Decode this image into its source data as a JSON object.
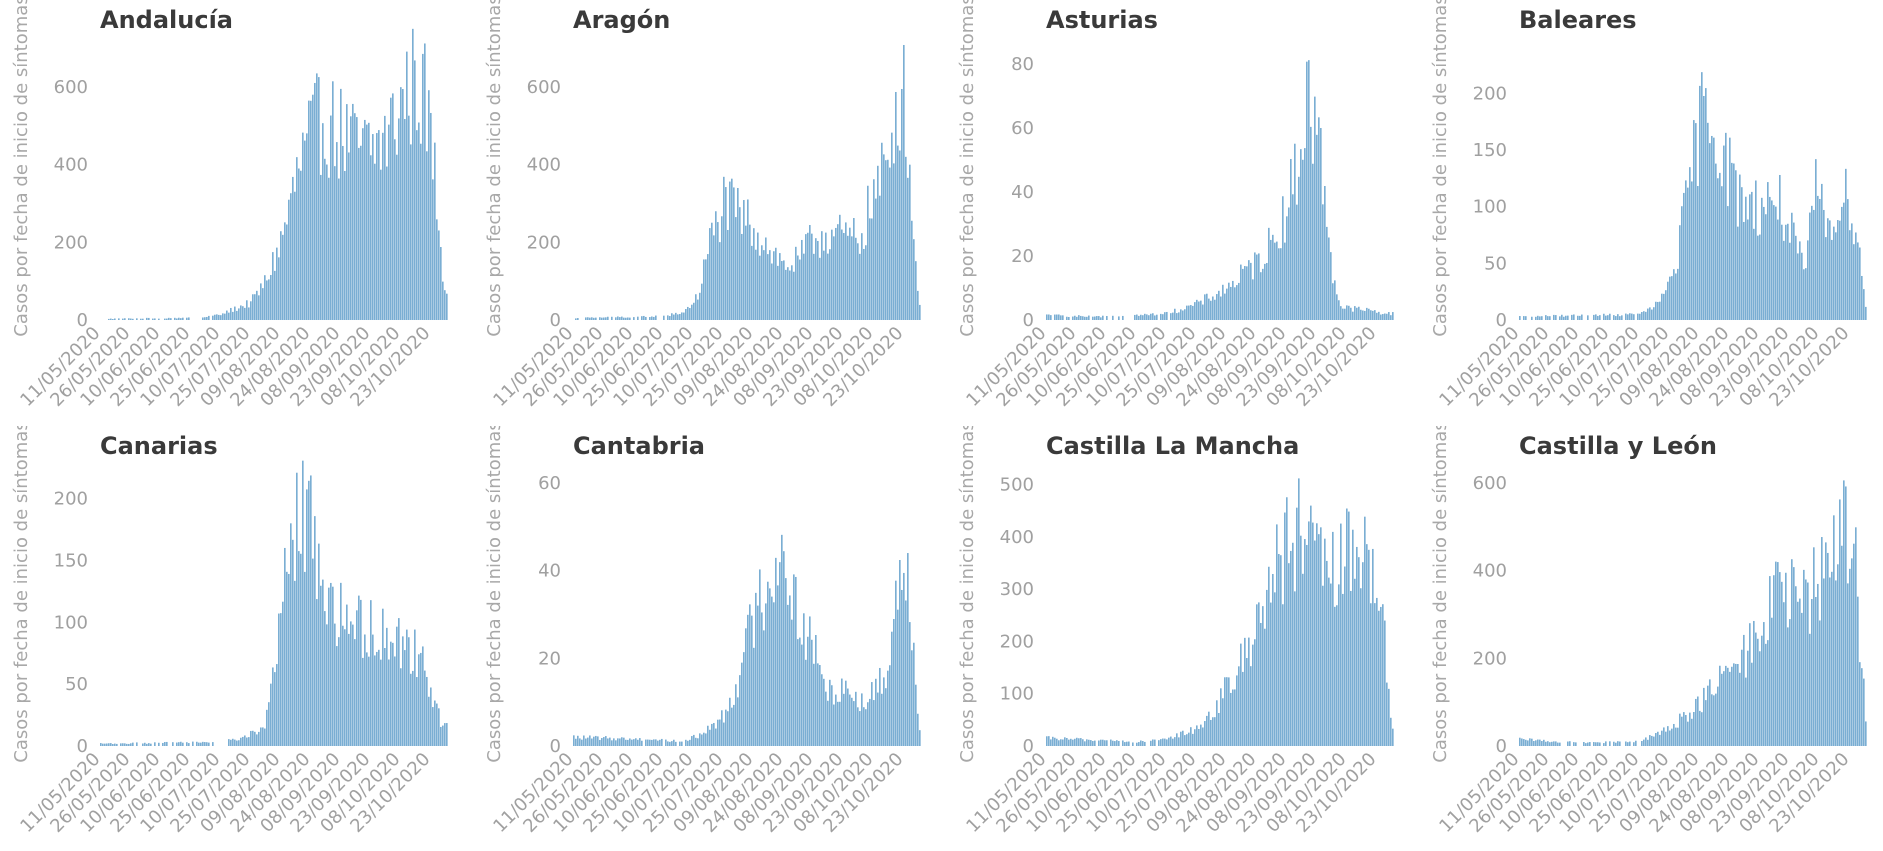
{
  "chart_data": [
    {
      "type": "bar",
      "title": "Andalucía",
      "ylabel": "Casos por fecha de inicio de síntomas",
      "ylim": [
        0,
        700
      ],
      "yticks": [
        0,
        200,
        400,
        600
      ],
      "x_start": "11/05/2020",
      "x_end": "31/10/2020",
      "xticks": [
        "11/05/2020",
        "26/05/2020",
        "10/06/2020",
        "25/06/2020",
        "10/07/2020",
        "25/07/2020",
        "09/08/2020",
        "24/08/2020",
        "08/09/2020",
        "23/09/2020",
        "08/10/2020",
        "23/10/2020"
      ],
      "profile": [
        [
          "11/05/2020",
          3
        ],
        [
          "30/06/2020",
          6
        ],
        [
          "10/07/2020",
          15
        ],
        [
          "25/07/2020",
          45
        ],
        [
          "01/08/2020",
          95
        ],
        [
          "09/08/2020",
          200
        ],
        [
          "18/08/2020",
          390
        ],
        [
          "24/08/2020",
          480
        ],
        [
          "30/08/2020",
          520
        ],
        [
          "08/09/2020",
          480
        ],
        [
          "15/09/2020",
          450
        ],
        [
          "23/09/2020",
          440
        ],
        [
          "01/10/2020",
          470
        ],
        [
          "10/10/2020",
          580
        ],
        [
          "16/10/2020",
          620
        ],
        [
          "20/10/2020",
          570
        ],
        [
          "24/10/2020",
          440
        ],
        [
          "27/10/2020",
          250
        ],
        [
          "30/10/2020",
          80
        ]
      ]
    },
    {
      "type": "bar",
      "title": "Aragón",
      "ylabel": "Casos por fecha de inicio de síntomas",
      "ylim": [
        0,
        700
      ],
      "yticks": [
        0,
        200,
        400,
        600
      ],
      "x_start": "11/05/2020",
      "x_end": "31/10/2020",
      "xticks": [
        "11/05/2020",
        "26/05/2020",
        "10/06/2020",
        "25/06/2020",
        "10/07/2020",
        "25/07/2020",
        "09/08/2020",
        "24/08/2020",
        "08/09/2020",
        "23/09/2020",
        "08/10/2020",
        "23/10/2020"
      ],
      "profile": [
        [
          "11/05/2020",
          5
        ],
        [
          "25/06/2020",
          10
        ],
        [
          "05/07/2020",
          20
        ],
        [
          "12/07/2020",
          60
        ],
        [
          "18/07/2020",
          200
        ],
        [
          "25/07/2020",
          300
        ],
        [
          "31/07/2020",
          280
        ],
        [
          "09/08/2020",
          240
        ],
        [
          "18/08/2020",
          180
        ],
        [
          "24/08/2020",
          140
        ],
        [
          "31/08/2020",
          150
        ],
        [
          "08/09/2020",
          210
        ],
        [
          "15/09/2020",
          225
        ],
        [
          "23/09/2020",
          215
        ],
        [
          "01/10/2020",
          210
        ],
        [
          "08/10/2020",
          320
        ],
        [
          "15/10/2020",
          400
        ],
        [
          "20/10/2020",
          600
        ],
        [
          "24/10/2020",
          560
        ],
        [
          "28/10/2020",
          200
        ],
        [
          "31/10/2020",
          40
        ]
      ]
    },
    {
      "type": "bar",
      "title": "Asturias",
      "ylabel": "Casos por fecha de inicio de síntomas",
      "ylim": [
        0,
        85
      ],
      "yticks": [
        0,
        20,
        40,
        60,
        80
      ],
      "x_start": "11/05/2020",
      "x_end": "31/10/2020",
      "xticks": [
        "11/05/2020",
        "26/05/2020",
        "10/06/2020",
        "25/06/2020",
        "10/07/2020",
        "25/07/2020",
        "09/08/2020",
        "24/08/2020",
        "08/09/2020",
        "23/09/2020",
        "08/10/2020",
        "23/10/2020"
      ],
      "profile": [
        [
          "11/05/2020",
          1.5
        ],
        [
          "06/06/2020",
          1
        ],
        [
          "10/07/2020",
          2
        ],
        [
          "25/07/2020",
          5
        ],
        [
          "09/08/2020",
          10
        ],
        [
          "24/08/2020",
          18
        ],
        [
          "01/09/2020",
          25
        ],
        [
          "08/09/2020",
          35
        ],
        [
          "14/09/2020",
          50
        ],
        [
          "18/09/2020",
          70
        ],
        [
          "23/09/2020",
          60
        ],
        [
          "27/09/2020",
          40
        ],
        [
          "01/10/2020",
          15
        ],
        [
          "05/10/2020",
          4
        ],
        [
          "20/10/2020",
          3
        ],
        [
          "27/10/2020",
          2
        ]
      ]
    },
    {
      "type": "bar",
      "title": "Baleares",
      "ylabel": "Casos por fecha de inicio de síntomas",
      "ylim": [
        0,
        240
      ],
      "yticks": [
        0,
        50,
        100,
        150,
        200
      ],
      "x_start": "11/05/2020",
      "x_end": "31/10/2020",
      "xticks": [
        "11/05/2020",
        "26/05/2020",
        "10/06/2020",
        "25/06/2020",
        "10/07/2020",
        "25/07/2020",
        "09/08/2020",
        "24/08/2020",
        "08/09/2020",
        "23/09/2020",
        "08/10/2020",
        "23/10/2020"
      ],
      "profile": [
        [
          "11/05/2020",
          3
        ],
        [
          "10/07/2020",
          5
        ],
        [
          "20/07/2020",
          15
        ],
        [
          "28/07/2020",
          50
        ],
        [
          "03/08/2020",
          110
        ],
        [
          "09/08/2020",
          175
        ],
        [
          "14/08/2020",
          190
        ],
        [
          "20/08/2020",
          150
        ],
        [
          "28/08/2020",
          110
        ],
        [
          "08/09/2020",
          100
        ],
        [
          "16/09/2020",
          110
        ],
        [
          "23/09/2020",
          80
        ],
        [
          "01/10/2020",
          40
        ],
        [
          "06/10/2020",
          130
        ],
        [
          "10/10/2020",
          85
        ],
        [
          "17/10/2020",
          100
        ],
        [
          "23/10/2020",
          110
        ],
        [
          "28/10/2020",
          60
        ],
        [
          "31/10/2020",
          10
        ]
      ]
    },
    {
      "type": "bar",
      "title": "Canarias",
      "ylabel": "Casos por fecha de inicio de síntomas",
      "ylim": [
        0,
        220
      ],
      "yticks": [
        0,
        50,
        100,
        150,
        200
      ],
      "x_start": "11/05/2020",
      "x_end": "31/10/2020",
      "xticks": [
        "11/05/2020",
        "26/05/2020",
        "10/06/2020",
        "25/06/2020",
        "10/07/2020",
        "25/07/2020",
        "09/08/2020",
        "24/08/2020",
        "08/09/2020",
        "23/09/2020",
        "08/10/2020",
        "23/10/2020"
      ],
      "profile": [
        [
          "11/05/2020",
          2
        ],
        [
          "05/07/2020",
          3
        ],
        [
          "20/07/2020",
          6
        ],
        [
          "01/08/2020",
          15
        ],
        [
          "05/08/2020",
          60
        ],
        [
          "10/08/2020",
          120
        ],
        [
          "15/08/2020",
          170
        ],
        [
          "20/08/2020",
          190
        ],
        [
          "26/08/2020",
          170
        ],
        [
          "01/09/2020",
          120
        ],
        [
          "08/09/2020",
          105
        ],
        [
          "23/09/2020",
          95
        ],
        [
          "08/10/2020",
          85
        ],
        [
          "16/10/2020",
          75
        ],
        [
          "22/10/2020",
          55
        ],
        [
          "29/10/2020",
          15
        ]
      ]
    },
    {
      "type": "bar",
      "title": "Cantabria",
      "ylabel": "Casos por fecha de inicio de síntomas",
      "ylim": [
        0,
        62
      ],
      "yticks": [
        0,
        20,
        40,
        60
      ],
      "x_start": "11/05/2020",
      "x_end": "31/10/2020",
      "xticks": [
        "11/05/2020",
        "26/05/2020",
        "10/06/2020",
        "25/06/2020",
        "10/07/2020",
        "25/07/2020",
        "09/08/2020",
        "24/08/2020",
        "08/09/2020",
        "23/09/2020",
        "08/10/2020",
        "23/10/2020"
      ],
      "profile": [
        [
          "11/05/2020",
          2
        ],
        [
          "20/06/2020",
          1.5
        ],
        [
          "05/07/2020",
          1
        ],
        [
          "15/07/2020",
          3
        ],
        [
          "25/07/2020",
          7
        ],
        [
          "01/08/2020",
          15
        ],
        [
          "09/08/2020",
          30
        ],
        [
          "18/08/2020",
          40
        ],
        [
          "24/08/2020",
          45
        ],
        [
          "31/08/2020",
          30
        ],
        [
          "08/09/2020",
          22
        ],
        [
          "15/09/2020",
          12
        ],
        [
          "23/09/2020",
          14
        ],
        [
          "01/10/2020",
          10
        ],
        [
          "08/10/2020",
          12
        ],
        [
          "15/10/2020",
          18
        ],
        [
          "21/10/2020",
          40
        ],
        [
          "25/10/2020",
          45
        ],
        [
          "28/10/2020",
          20
        ],
        [
          "31/10/2020",
          5
        ]
      ]
    },
    {
      "type": "bar",
      "title": "Castilla La Mancha",
      "ylabel": "Casos por fecha de inicio de síntomas",
      "ylim": [
        0,
        520
      ],
      "yticks": [
        0,
        100,
        200,
        300,
        400,
        500
      ],
      "x_start": "11/05/2020",
      "x_end": "31/10/2020",
      "xticks": [
        "11/05/2020",
        "26/05/2020",
        "10/06/2020",
        "25/06/2020",
        "10/07/2020",
        "25/07/2020",
        "09/08/2020",
        "24/08/2020",
        "08/09/2020",
        "23/09/2020",
        "08/10/2020",
        "23/10/2020"
      ],
      "profile": [
        [
          "11/05/2020",
          15
        ],
        [
          "25/06/2020",
          8
        ],
        [
          "10/07/2020",
          12
        ],
        [
          "25/07/2020",
          35
        ],
        [
          "01/08/2020",
          60
        ],
        [
          "09/08/2020",
          110
        ],
        [
          "18/08/2020",
          170
        ],
        [
          "24/08/2020",
          250
        ],
        [
          "01/09/2020",
          330
        ],
        [
          "08/09/2020",
          380
        ],
        [
          "15/09/2020",
          410
        ],
        [
          "23/09/2020",
          350
        ],
        [
          "30/09/2020",
          330
        ],
        [
          "08/10/2020",
          360
        ],
        [
          "15/10/2020",
          370
        ],
        [
          "23/10/2020",
          350
        ],
        [
          "28/10/2020",
          150
        ],
        [
          "31/10/2020",
          30
        ]
      ]
    },
    {
      "type": "bar",
      "title": "Castilla y León",
      "ylabel": "Casos por fecha de inicio de síntomas",
      "ylim": [
        0,
        620
      ],
      "yticks": [
        0,
        200,
        400,
        600
      ],
      "x_start": "11/05/2020",
      "x_end": "31/10/2020",
      "xticks": [
        "11/05/2020",
        "26/05/2020",
        "10/06/2020",
        "25/06/2020",
        "10/07/2020",
        "25/07/2020",
        "09/08/2020",
        "24/08/2020",
        "08/09/2020",
        "23/09/2020",
        "08/10/2020",
        "23/10/2020"
      ],
      "profile": [
        [
          "11/05/2020",
          15
        ],
        [
          "10/06/2020",
          8
        ],
        [
          "10/07/2020",
          10
        ],
        [
          "25/07/2020",
          40
        ],
        [
          "09/08/2020",
          100
        ],
        [
          "24/08/2020",
          170
        ],
        [
          "01/09/2020",
          210
        ],
        [
          "08/09/2020",
          270
        ],
        [
          "16/09/2020",
          350
        ],
        [
          "23/09/2020",
          340
        ],
        [
          "01/10/2020",
          330
        ],
        [
          "08/10/2020",
          380
        ],
        [
          "14/10/2020",
          460
        ],
        [
          "20/10/2020",
          500
        ],
        [
          "25/10/2020",
          520
        ],
        [
          "28/10/2020",
          250
        ],
        [
          "31/10/2020",
          60
        ]
      ]
    }
  ]
}
